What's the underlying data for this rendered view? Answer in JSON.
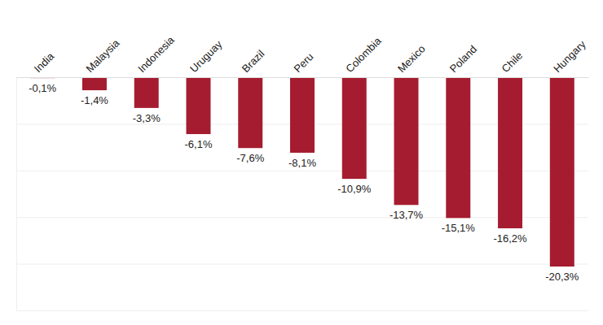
{
  "chart_data": {
    "type": "bar",
    "categories": [
      "India",
      "Malaysia",
      "Indonesia",
      "Uruguay",
      "Brazil",
      "Peru",
      "Colombia",
      "Mexico",
      "Poland",
      "Chile",
      "Hungary"
    ],
    "values": [
      -0.1,
      -1.4,
      -3.3,
      -6.1,
      -7.6,
      -8.1,
      -10.9,
      -13.7,
      -15.1,
      -16.2,
      -20.3
    ],
    "value_labels": [
      "-0,1%",
      "-1,4%",
      "-3,3%",
      "-6,1%",
      "-7,6%",
      "-8,1%",
      "-10,9%",
      "-13,7%",
      "-15,1%",
      "-16,2%",
      "-20,3%"
    ],
    "color": "#a51c30",
    "ylim": [
      -25,
      0
    ],
    "yticks": [
      0,
      -5,
      -10,
      -15,
      -20,
      -25
    ],
    "grid": true,
    "data_labels": true,
    "tick_labels": "x"
  }
}
